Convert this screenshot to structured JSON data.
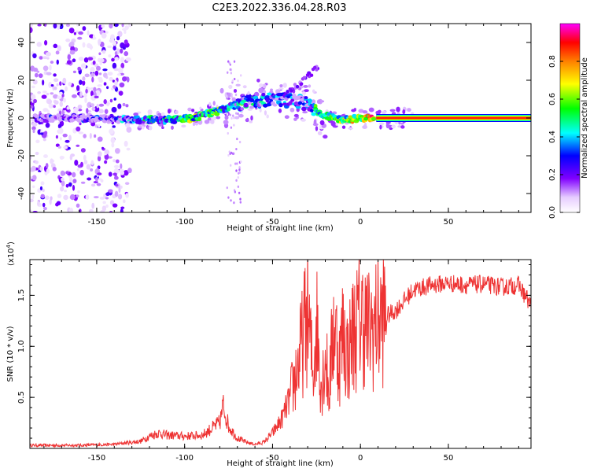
{
  "title": "C2E3.2022.336.04.28.R03",
  "chart_data": [
    {
      "type": "heatmap",
      "xlabel": "Height of straight line (km)",
      "ylabel": "Frequency (Hz)",
      "xlim": [
        -188,
        97
      ],
      "ylim": [
        -50,
        50
      ],
      "x_ticks": [
        -150,
        -100,
        -50,
        0,
        50
      ],
      "y_ticks": [
        -40,
        -20,
        0,
        20,
        40
      ],
      "colorbar": {
        "label": "Normalized spectral amplitude",
        "range": [
          0,
          1
        ],
        "ticks": [
          0.0,
          0.2,
          0.4,
          0.6,
          0.8
        ],
        "tick_labels": [
          "0.0",
          "0.2",
          "0.4",
          "0.6",
          "0.8"
        ]
      },
      "ridge": {
        "x": [
          -185,
          -150,
          -130,
          -110,
          -95,
          -80,
          -70,
          -60,
          -50,
          -40,
          -30,
          -25,
          -20,
          -10,
          0,
          10,
          50,
          97
        ],
        "frequency": [
          0,
          0,
          -1,
          -1,
          0,
          4,
          7,
          9,
          10,
          9,
          8,
          3,
          1,
          -1,
          0,
          0,
          0,
          0
        ],
        "amplitude": [
          0.15,
          0.2,
          0.35,
          0.45,
          0.55,
          0.5,
          0.45,
          0.4,
          0.35,
          0.3,
          0.3,
          0.5,
          0.6,
          0.65,
          0.7,
          0.9,
          1.0,
          1.0
        ]
      }
    },
    {
      "type": "line",
      "xlabel": "Height of straight line (km)",
      "ylabel": "SNR (10 * v/v)",
      "scale_label": "(x10",
      "scale_exp": "4",
      "scale_close": ")",
      "xlim": [
        -188,
        97
      ],
      "ylim": [
        0,
        18500
      ],
      "x_ticks": [
        -150,
        -100,
        -50,
        0,
        50
      ],
      "y_ticks": [
        5000,
        10000,
        15000
      ],
      "y_tick_labels": [
        "0.5",
        "1.0",
        "1.5"
      ],
      "line_color": "#ee3333",
      "series": [
        {
          "x": [
            -188,
            -160,
            -140,
            -125,
            -120,
            -115,
            -110,
            -100,
            -90,
            -80,
            -78,
            -75,
            -70,
            -65,
            -60,
            -55,
            -50,
            -45,
            -40,
            -35,
            -32,
            -30,
            -27,
            -25,
            -22,
            -20,
            -18,
            -15,
            -12,
            -10,
            -7,
            -5,
            -2,
            0,
            5,
            10,
            15,
            20,
            25,
            30,
            40,
            50,
            60,
            70,
            80,
            90,
            97
          ],
          "values": [
            300,
            300,
            400,
            700,
            1200,
            1500,
            1300,
            1200,
            1300,
            2500,
            4200,
            2200,
            1000,
            600,
            400,
            600,
            1500,
            2800,
            5000,
            8500,
            11500,
            13500,
            7000,
            12500,
            6000,
            9500,
            5500,
            12500,
            8500,
            11500,
            9000,
            11000,
            12000,
            13000,
            11500,
            12500,
            13000,
            13500,
            14500,
            15500,
            16000,
            16200,
            16000,
            16100,
            15800,
            16000,
            14000
          ]
        }
      ]
    }
  ]
}
